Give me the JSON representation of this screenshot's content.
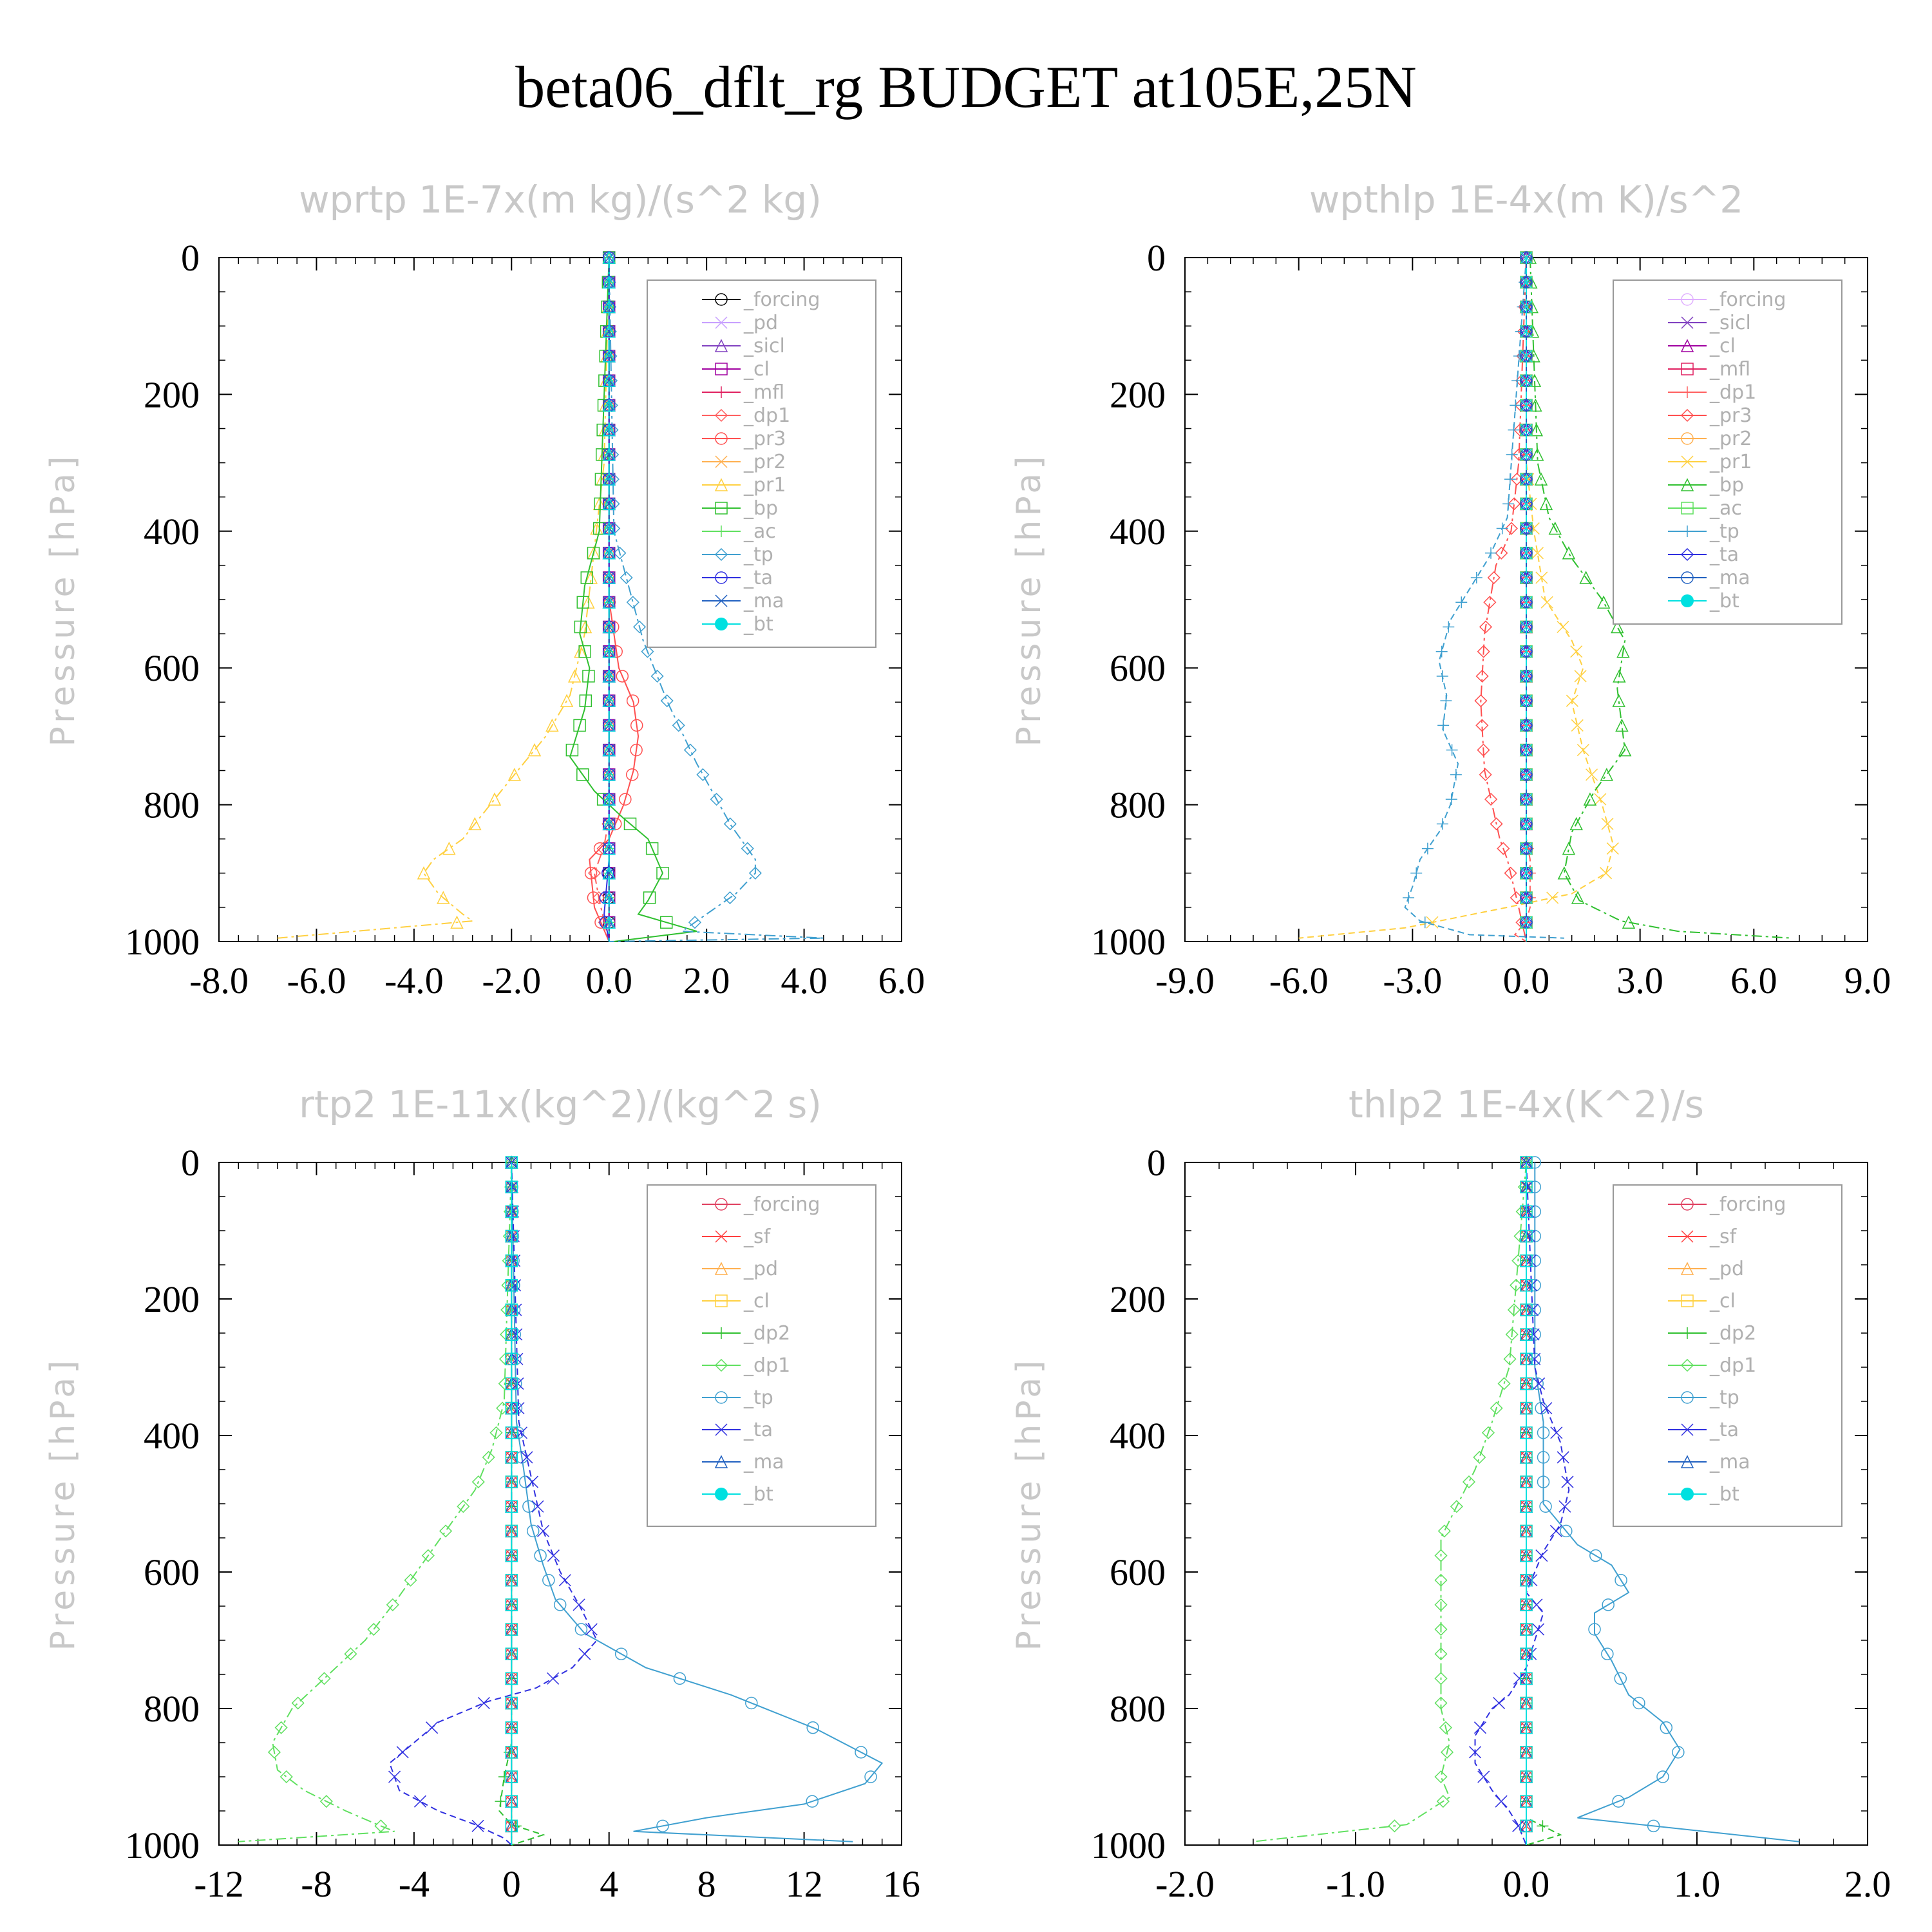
{
  "title": "beta06_dflt_rg  BUDGET at105E,25N",
  "chart_data": [
    {
      "type": "line",
      "title": "wprtp  1E-7x(m kg)/(s^2 kg)",
      "ylabel": "Pressure [hPa]",
      "xlim": [
        -8,
        6
      ],
      "ylim": [
        1000,
        0
      ],
      "xticks": [
        "-8.0",
        "-6.0",
        "-4.0",
        "-2.0",
        "0.0",
        "2.0",
        "4.0",
        "6.0"
      ],
      "yticks": [
        "0",
        "200",
        "400",
        "600",
        "800",
        "1000"
      ],
      "legend": "top-right",
      "series": [
        {
          "name": "_forcing",
          "color": "#000000",
          "x": [
            0,
            0
          ],
          "y": [
            0,
            1000
          ]
        },
        {
          "name": "_pd",
          "color": "#c8a0ff",
          "x": [
            0,
            0
          ],
          "y": [
            0,
            1000
          ]
        },
        {
          "name": "_sicl",
          "color": "#8040c0",
          "x": [
            0,
            0
          ],
          "y": [
            0,
            1000
          ]
        },
        {
          "name": "_cl",
          "color": "#a000a0",
          "x": [
            0,
            0
          ],
          "y": [
            0,
            1000
          ]
        },
        {
          "name": "_mfl",
          "color": "#e02060",
          "x": [
            0,
            0
          ],
          "y": [
            0,
            1000
          ]
        },
        {
          "name": "_dp1",
          "color": "#ff6060",
          "x": [
            0,
            0,
            0,
            -0.1,
            -0.2,
            -0.3,
            -0.2,
            -0.1,
            0
          ],
          "y": [
            0,
            700,
            820,
            860,
            880,
            900,
            940,
            970,
            1000
          ]
        },
        {
          "name": "_pr3",
          "color": "#ff5050",
          "x": [
            0,
            0,
            0.2,
            0.5,
            0.6,
            0.5,
            0.3,
            0,
            -0.4,
            -0.3,
            0
          ],
          "y": [
            0,
            500,
            600,
            650,
            700,
            750,
            800,
            850,
            880,
            950,
            1000
          ]
        },
        {
          "name": "_pr2",
          "color": "#ffb050",
          "x": [
            0,
            0,
            0,
            0
          ],
          "y": [
            0,
            600,
            950,
            1000
          ]
        },
        {
          "name": "_pr1",
          "color": "#ffd040",
          "x": [
            0,
            -0.1,
            -0.5,
            -0.8,
            -1.3,
            -2.1,
            -3.0,
            -3.6,
            -3.8,
            -3.5,
            -3.0,
            -2.8,
            -6.8
          ],
          "y": [
            0,
            300,
            550,
            640,
            700,
            770,
            850,
            880,
            900,
            930,
            960,
            970,
            995
          ]
        },
        {
          "name": "_bp",
          "color": "#30c030",
          "x": [
            0,
            -0.2,
            -0.5,
            -0.6,
            -0.4,
            -0.5,
            -0.8,
            -0.3,
            0.3,
            0.8,
            1.1,
            0.8,
            0.6,
            1.8,
            0.1
          ],
          "y": [
            0,
            400,
            480,
            550,
            600,
            660,
            730,
            780,
            820,
            850,
            900,
            940,
            960,
            985,
            1000
          ]
        },
        {
          "name": "_ac",
          "color": "#60e060",
          "x": [
            0,
            0,
            0
          ],
          "y": [
            0,
            900,
            1000
          ]
        },
        {
          "name": "_tp",
          "color": "#40a0d0",
          "x": [
            0,
            0.1,
            0.4,
            0.7,
            1.2,
            1.8,
            2.5,
            3.0,
            3.0,
            2.6,
            2.0,
            1.5,
            4.4,
            0
          ],
          "y": [
            0,
            400,
            480,
            560,
            650,
            740,
            830,
            880,
            900,
            930,
            960,
            985,
            995,
            1000
          ]
        },
        {
          "name": "_ta",
          "color": "#3030e0",
          "x": [
            0,
            0,
            -0.1,
            0
          ],
          "y": [
            0,
            880,
            960,
            1000
          ]
        },
        {
          "name": "_ma",
          "color": "#2060c0",
          "x": [
            0,
            0
          ],
          "y": [
            0,
            1000
          ]
        },
        {
          "name": "_bt",
          "color": "#00e0e0",
          "x": [
            0,
            0
          ],
          "y": [
            0,
            1000
          ]
        }
      ]
    },
    {
      "type": "line",
      "title": "wpthlp  1E-4x(m K)/s^2",
      "ylabel": "Pressure [hPa]",
      "xlim": [
        -9,
        9
      ],
      "ylim": [
        1000,
        0
      ],
      "xticks": [
        "-9.0",
        "-6.0",
        "-3.0",
        "0.0",
        "3.0",
        "6.0",
        "9.0"
      ],
      "yticks": [
        "0",
        "200",
        "400",
        "600",
        "800",
        "1000"
      ],
      "legend": "top-right",
      "series": [
        {
          "name": "_forcing",
          "color": "#e0b0ff",
          "x": [
            0,
            0
          ],
          "y": [
            0,
            1000
          ]
        },
        {
          "name": "_sicl",
          "color": "#8040c0",
          "x": [
            0,
            0
          ],
          "y": [
            0,
            1000
          ]
        },
        {
          "name": "_cl",
          "color": "#a000a0",
          "x": [
            0,
            0
          ],
          "y": [
            0,
            1000
          ]
        },
        {
          "name": "_mfl",
          "color": "#e02060",
          "x": [
            0,
            0
          ],
          "y": [
            0,
            1000
          ]
        },
        {
          "name": "_dp1",
          "color": "#ff6060",
          "x": [
            0,
            0,
            0,
            0.1,
            0.1,
            0.1,
            0,
            -0.3,
            0
          ],
          "y": [
            0,
            800,
            850,
            880,
            920,
            950,
            970,
            990,
            1000
          ]
        },
        {
          "name": "_pr3",
          "color": "#ff5050",
          "x": [
            0,
            -0.2,
            -0.4,
            -0.8,
            -1.1,
            -1.2,
            -1.1,
            -0.9,
            -0.7,
            -0.5,
            -0.2,
            0
          ],
          "y": [
            0,
            300,
            400,
            450,
            550,
            650,
            750,
            800,
            850,
            880,
            950,
            1000
          ]
        },
        {
          "name": "_pr2",
          "color": "#ffb050",
          "x": [
            0,
            0,
            0
          ],
          "y": [
            0,
            900,
            1000
          ]
        },
        {
          "name": "_pr1",
          "color": "#ffd040",
          "x": [
            0,
            0,
            0.2,
            0.5,
            1.2,
            1.5,
            1.2,
            1.5,
            2.0,
            2.3,
            2.1,
            1.2,
            -0.5,
            -3.2,
            -6.0
          ],
          "y": [
            0,
            300,
            400,
            500,
            560,
            600,
            650,
            720,
            800,
            860,
            900,
            930,
            950,
            980,
            995
          ]
        },
        {
          "name": "_bp",
          "color": "#30c030",
          "x": [
            0.1,
            0.3,
            0.6,
            1.2,
            2.0,
            2.6,
            2.4,
            2.6,
            1.8,
            1.2,
            1.0,
            1.4,
            2.5,
            4.0,
            7.0
          ],
          "y": [
            0,
            300,
            380,
            440,
            500,
            560,
            630,
            720,
            780,
            840,
            900,
            940,
            970,
            985,
            995
          ]
        },
        {
          "name": "_ac",
          "color": "#60e060",
          "x": [
            0,
            0
          ],
          "y": [
            0,
            1000
          ]
        },
        {
          "name": "_tp",
          "color": "#40a0d0",
          "x": [
            0,
            -0.5,
            -1.0,
            -2.0,
            -2.3,
            -2.1,
            -2.2,
            -1.8,
            -2.0,
            -2.3,
            -2.8,
            -3.0,
            -3.2,
            -2.8,
            -1.5,
            1.0
          ],
          "y": [
            0,
            380,
            440,
            530,
            590,
            640,
            690,
            740,
            800,
            840,
            880,
            920,
            950,
            970,
            990,
            995
          ]
        },
        {
          "name": "_ta",
          "color": "#3030e0",
          "x": [
            0,
            0,
            0
          ],
          "y": [
            0,
            900,
            1000
          ]
        },
        {
          "name": "_ma",
          "color": "#2060c0",
          "x": [
            0,
            0
          ],
          "y": [
            0,
            1000
          ]
        },
        {
          "name": "_bt",
          "color": "#00e0e0",
          "x": [
            0,
            0
          ],
          "y": [
            0,
            1000
          ]
        }
      ]
    },
    {
      "type": "line",
      "title": "rtp2  1E-11x(kg^2)/(kg^2 s)",
      "ylabel": "Pressure [hPa]",
      "xlim": [
        -12,
        16
      ],
      "ylim": [
        1000,
        0
      ],
      "xticks": [
        "-12",
        "-8",
        "-4",
        "0",
        "4",
        "8",
        "12",
        "16"
      ],
      "yticks": [
        "0",
        "200",
        "400",
        "600",
        "800",
        "1000"
      ],
      "legend": "top-right",
      "series": [
        {
          "name": "_forcing",
          "color": "#e04060",
          "x": [
            0,
            0
          ],
          "y": [
            0,
            1000
          ]
        },
        {
          "name": "_sf",
          "color": "#ff4040",
          "x": [
            0,
            0
          ],
          "y": [
            0,
            1000
          ]
        },
        {
          "name": "_pd",
          "color": "#ffb050",
          "x": [
            0,
            0
          ],
          "y": [
            0,
            1000
          ]
        },
        {
          "name": "_cl",
          "color": "#ffd040",
          "x": [
            0,
            0
          ],
          "y": [
            0,
            1000
          ]
        },
        {
          "name": "_dp2",
          "color": "#30c030",
          "x": [
            0,
            0,
            -0.3,
            -0.5,
            0,
            1.3,
            0
          ],
          "y": [
            0,
            850,
            900,
            950,
            970,
            985,
            1000
          ]
        },
        {
          "name": "_dp1",
          "color": "#60e060",
          "x": [
            0,
            -0.3,
            -0.8,
            -1.5,
            -2.5,
            -3.5,
            -4.7,
            -6.0,
            -7.5,
            -9.0,
            -9.8,
            -9.6,
            -8.5,
            -6.8,
            -5.5,
            -4.8,
            -11.2
          ],
          "y": [
            0,
            350,
            420,
            480,
            530,
            580,
            640,
            700,
            750,
            800,
            850,
            890,
            920,
            950,
            970,
            980,
            995
          ]
        },
        {
          "name": "_tp",
          "color": "#40a0d0",
          "x": [
            0,
            0.2,
            0.5,
            0.8,
            1.3,
            1.8,
            3.0,
            5.5,
            9.0,
            12.5,
            15.2,
            14.5,
            12.0,
            8.0,
            5.0,
            14.0
          ],
          "y": [
            0,
            380,
            450,
            530,
            590,
            640,
            690,
            740,
            780,
            830,
            880,
            910,
            940,
            960,
            980,
            995
          ]
        },
        {
          "name": "_ta",
          "color": "#3030e0",
          "x": [
            0,
            0.3,
            0.8,
            1.3,
            2.0,
            2.8,
            3.5,
            2.5,
            1.0,
            -1.0,
            -3.0,
            -4.0,
            -5.0,
            -4.6,
            -3.0,
            -1.5,
            -0.3,
            0
          ],
          "y": [
            0,
            380,
            460,
            540,
            600,
            650,
            700,
            740,
            770,
            790,
            820,
            850,
            880,
            920,
            950,
            970,
            990,
            1000
          ]
        },
        {
          "name": "_ma",
          "color": "#2060c0",
          "x": [
            0,
            0
          ],
          "y": [
            0,
            1000
          ]
        },
        {
          "name": "_bt",
          "color": "#00e0e0",
          "x": [
            0,
            0
          ],
          "y": [
            0,
            1000
          ]
        }
      ]
    },
    {
      "type": "line",
      "title": "thlp2  1E-4x(K^2)/s",
      "ylabel": "Pressure [hPa]",
      "xlim": [
        -2,
        2
      ],
      "ylim": [
        1000,
        0
      ],
      "xticks": [
        "-2.0",
        "-1.0",
        "0.0",
        "1.0",
        "2.0"
      ],
      "yticks": [
        "0",
        "200",
        "400",
        "600",
        "800",
        "1000"
      ],
      "legend": "top-right",
      "series": [
        {
          "name": "_forcing",
          "color": "#e04060",
          "x": [
            0,
            0
          ],
          "y": [
            0,
            1000
          ]
        },
        {
          "name": "_sf",
          "color": "#ff4040",
          "x": [
            0,
            0
          ],
          "y": [
            0,
            1000
          ]
        },
        {
          "name": "_pd",
          "color": "#ffb050",
          "x": [
            0,
            0
          ],
          "y": [
            0,
            1000
          ]
        },
        {
          "name": "_cl",
          "color": "#ffd040",
          "x": [
            0,
            0
          ],
          "y": [
            0,
            1000
          ]
        },
        {
          "name": "_dp2",
          "color": "#30c030",
          "x": [
            0,
            0,
            0,
            0.2,
            0
          ],
          "y": [
            0,
            900,
            960,
            985,
            1000
          ]
        },
        {
          "name": "_dp1",
          "color": "#60e060",
          "x": [
            0,
            -0.1,
            -0.2,
            -0.3,
            -0.4,
            -0.5,
            -0.5,
            -0.5,
            -0.5,
            -0.5,
            -0.5,
            -0.45,
            -0.5,
            -0.45,
            -0.7,
            -1.6
          ],
          "y": [
            0,
            300,
            380,
            450,
            500,
            550,
            600,
            650,
            700,
            750,
            800,
            850,
            900,
            930,
            970,
            995
          ]
        },
        {
          "name": "_tp",
          "color": "#40a0d0",
          "x": [
            0.05,
            0.05,
            0.1,
            0.1,
            0.1,
            0.2,
            0.3,
            0.5,
            0.6,
            0.4,
            0.4,
            0.5,
            0.6,
            0.8,
            0.9,
            0.8,
            0.6,
            0.3,
            1.6
          ],
          "y": [
            0,
            300,
            380,
            440,
            500,
            530,
            560,
            590,
            630,
            660,
            690,
            730,
            780,
            820,
            860,
            900,
            930,
            960,
            995
          ]
        },
        {
          "name": "_ta",
          "color": "#3030e0",
          "x": [
            0,
            0.05,
            0.1,
            0.2,
            0.25,
            0.2,
            0.1,
            0,
            0.1,
            0.05,
            0,
            -0.1,
            -0.2,
            -0.3,
            -0.3,
            -0.2,
            -0.1,
            -0.05,
            0
          ],
          "y": [
            0,
            300,
            350,
            410,
            480,
            530,
            570,
            630,
            660,
            700,
            740,
            780,
            800,
            840,
            880,
            920,
            950,
            970,
            1000
          ]
        },
        {
          "name": "_ma",
          "color": "#2060c0",
          "x": [
            0,
            0
          ],
          "y": [
            0,
            1000
          ]
        },
        {
          "name": "_bt",
          "color": "#00e0e0",
          "x": [
            0,
            0
          ],
          "y": [
            0,
            1000
          ]
        }
      ]
    }
  ]
}
